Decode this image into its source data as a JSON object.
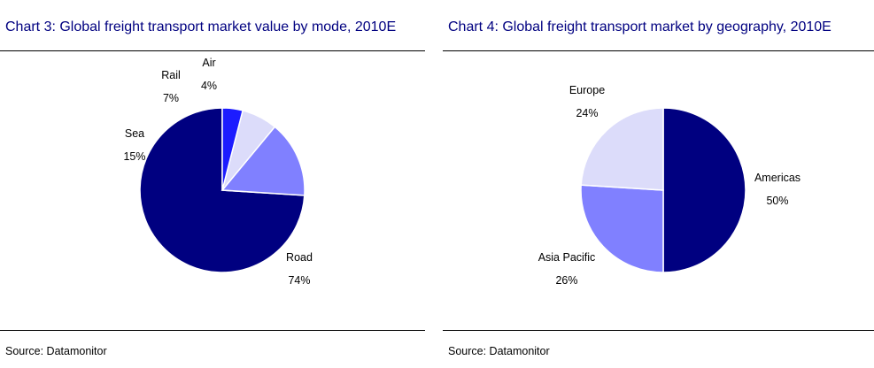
{
  "chart_data": [
    {
      "type": "pie",
      "title": "Chart 3: Global freight transport market value by mode, 2010E",
      "source": "Source: Datamonitor",
      "slices": [
        {
          "label": "Road",
          "value": 74,
          "value_text": "74%",
          "color": "#000080"
        },
        {
          "label": "Sea",
          "value": 15,
          "value_text": "15%",
          "color": "#8080FF"
        },
        {
          "label": "Rail",
          "value": 7,
          "value_text": "7%",
          "color": "#DCDCFA"
        },
        {
          "label": "Air",
          "value": 4,
          "value_text": "4%",
          "color": "#1C1CFF"
        }
      ]
    },
    {
      "type": "pie",
      "title": "Chart 4: Global freight transport market by geography, 2010E",
      "source": "Source: Datamonitor",
      "slices": [
        {
          "label": "Americas",
          "value": 50,
          "value_text": "50%",
          "color": "#000080"
        },
        {
          "label": "Asia Pacific",
          "value": 26,
          "value_text": "26%",
          "color": "#8080FF"
        },
        {
          "label": "Europe",
          "value": 24,
          "value_text": "24%",
          "color": "#DCDCFA"
        }
      ]
    }
  ]
}
